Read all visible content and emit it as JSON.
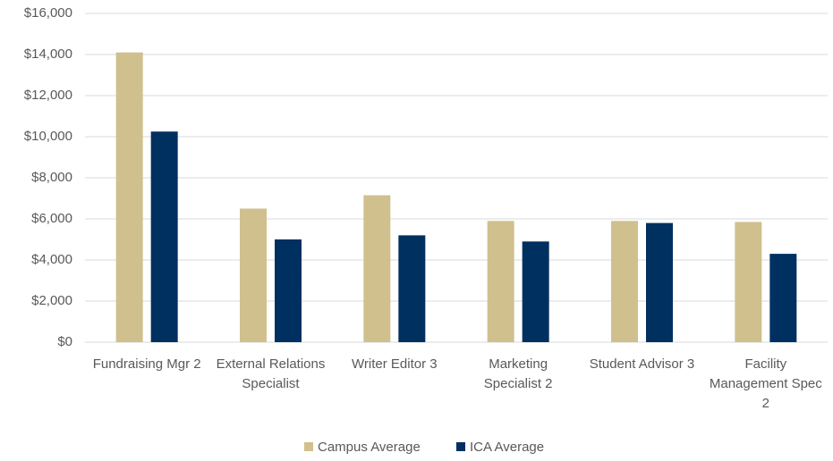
{
  "chart_data": {
    "type": "bar",
    "categories": [
      "Fundraising Mgr 2",
      "External Relations Specialist",
      "Writer Editor 3",
      "Marketing Specialist 2",
      "Student Advisor 3",
      "Facility Management Spec 2"
    ],
    "series": [
      {
        "name": "Campus Average",
        "color": "#cfc08e",
        "values": [
          14100,
          6500,
          7150,
          5900,
          5900,
          5850
        ]
      },
      {
        "name": "ICA Average",
        "color": "#003060",
        "values": [
          10250,
          5000,
          5200,
          4900,
          5800,
          4300
        ]
      }
    ],
    "ylim": [
      0,
      16000
    ],
    "yticks": [
      {
        "value": 0,
        "label": "$0"
      },
      {
        "value": 2000,
        "label": "$2,000"
      },
      {
        "value": 4000,
        "label": "$4,000"
      },
      {
        "value": 6000,
        "label": "$6,000"
      },
      {
        "value": 8000,
        "label": "$8,000"
      },
      {
        "value": 10000,
        "label": "$10,000"
      },
      {
        "value": 12000,
        "label": "$12,000"
      },
      {
        "value": 14000,
        "label": "$14,000"
      },
      {
        "value": 16000,
        "label": "$16,000"
      }
    ],
    "grid": true,
    "legend": "bottom"
  }
}
